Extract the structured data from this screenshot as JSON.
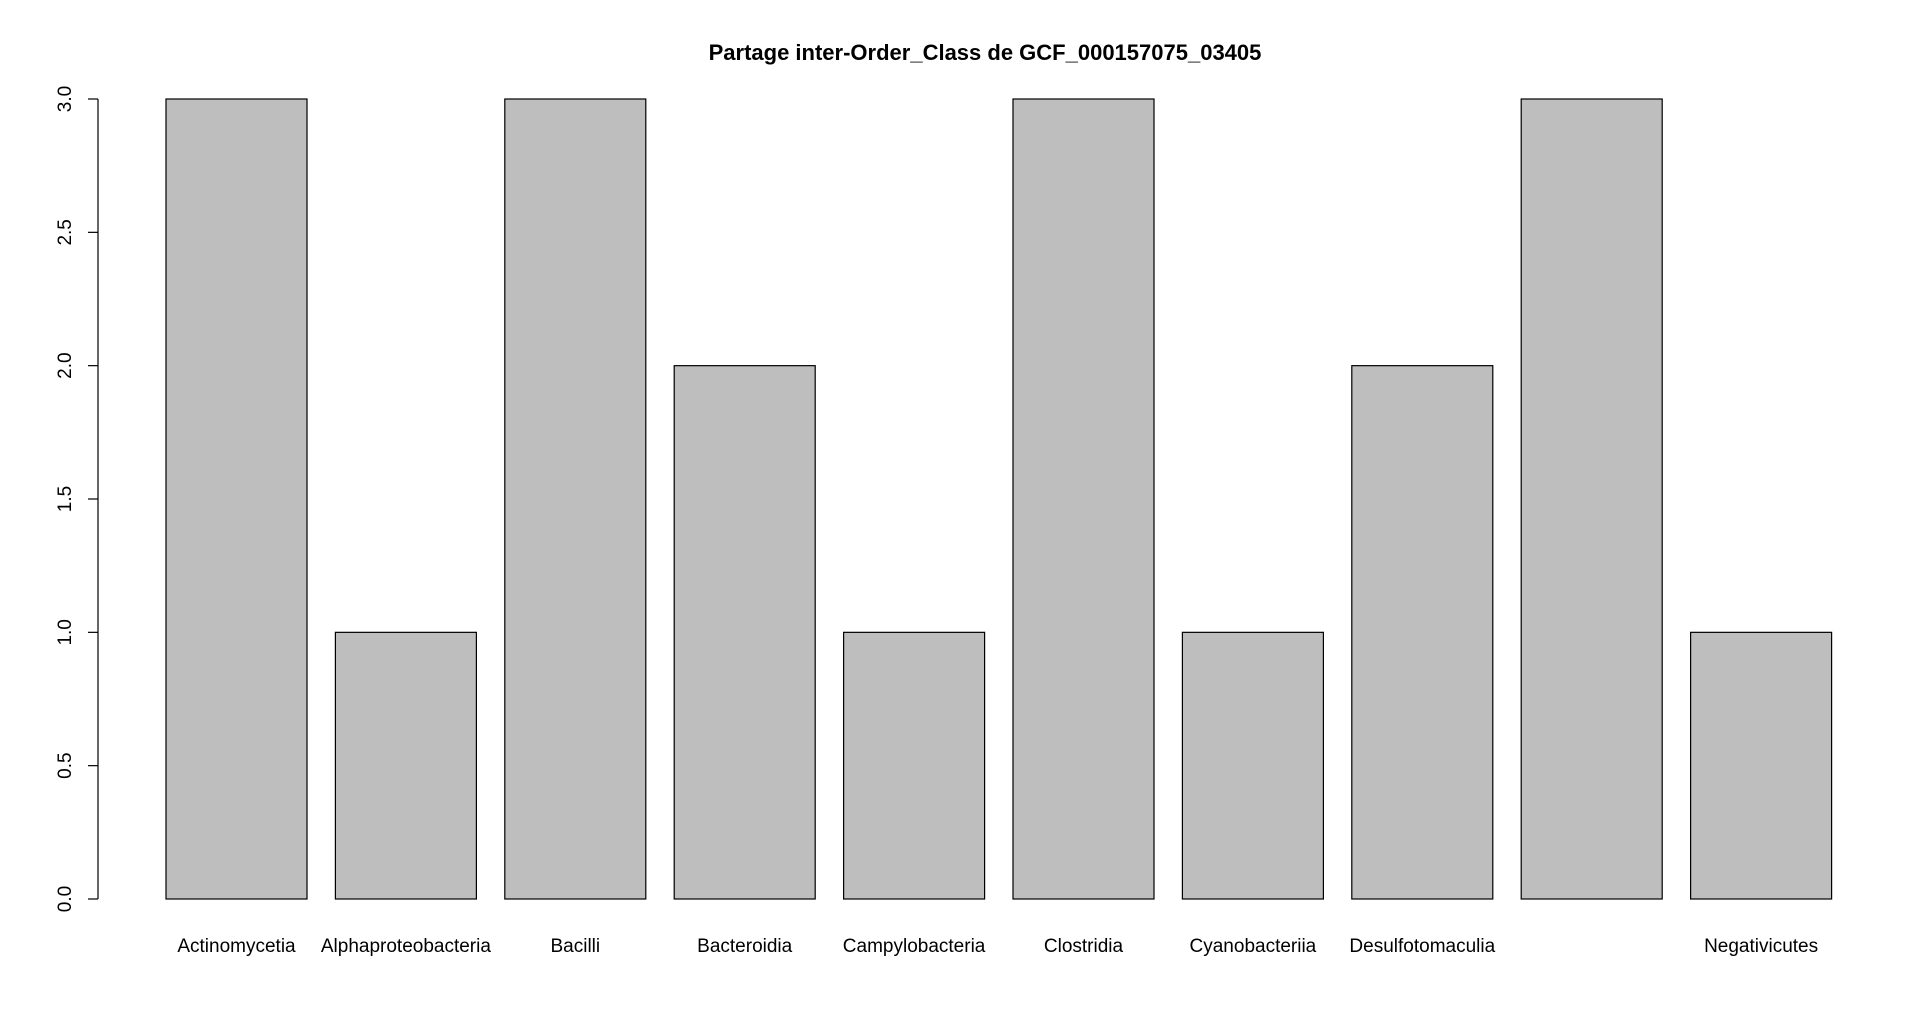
{
  "chart_data": {
    "type": "bar",
    "title": "Partage inter-Order_Class de GCF_000157075_03405",
    "xlabel": "",
    "ylabel": "",
    "categories": [
      "Actinomycetia",
      "Alphaproteobacteria",
      "Bacilli",
      "Bacteroidia",
      "Campylobacteria",
      "Clostridia",
      "Cyanobacteriia",
      "Desulfotomaculia",
      "",
      "Negativicutes"
    ],
    "values": [
      3,
      1,
      3,
      2,
      1,
      3,
      1,
      2,
      3,
      1
    ],
    "ylim": [
      0,
      3
    ],
    "yticks": [
      "0.0",
      "0.5",
      "1.0",
      "1.5",
      "2.0",
      "2.5",
      "3.0"
    ],
    "bar_color": "#bebebe",
    "grid": false
  }
}
